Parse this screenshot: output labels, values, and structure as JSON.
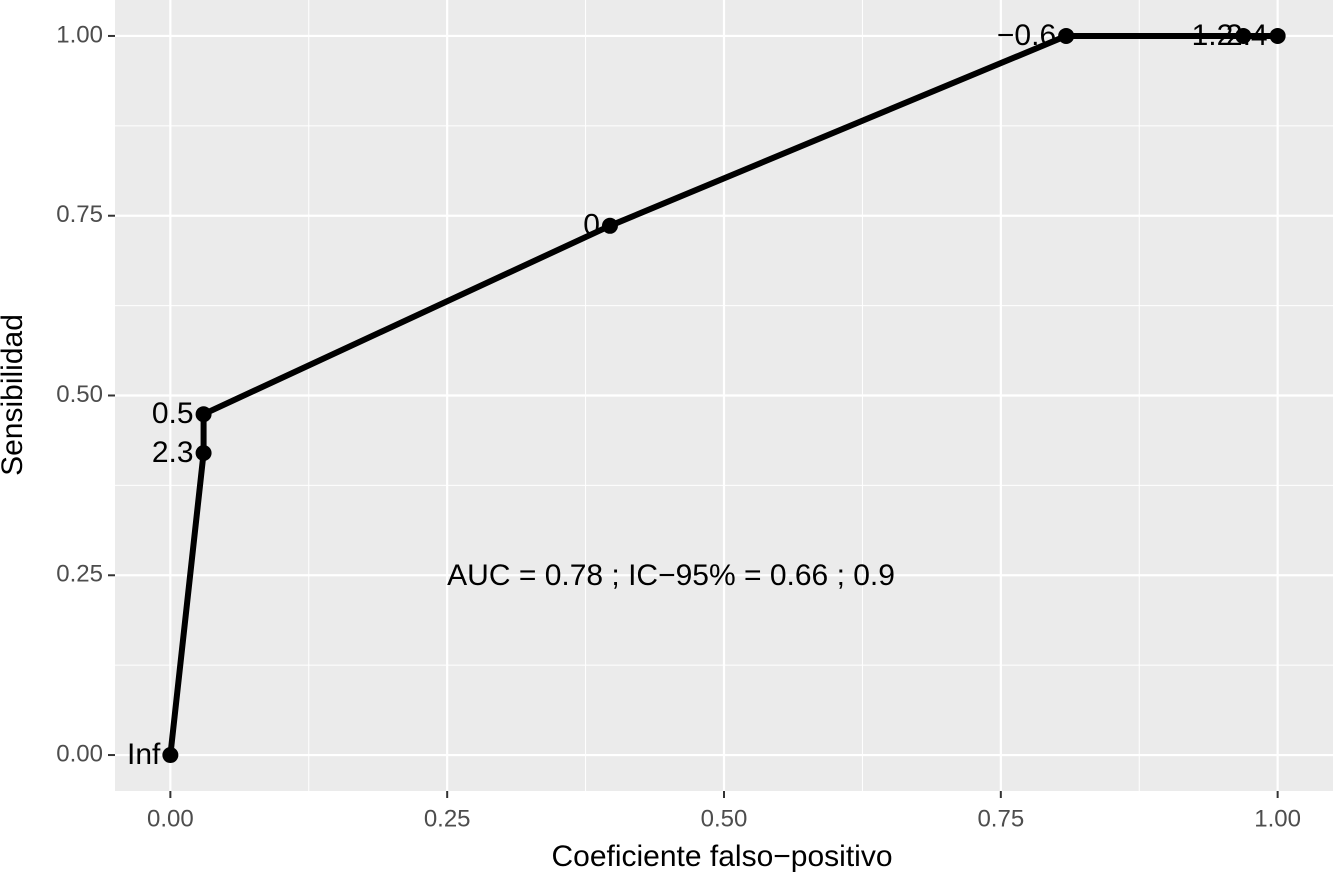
{
  "chart_data": {
    "type": "line",
    "x_label": "Coeficiente falso−positivo",
    "y_label": "Sensibilidad",
    "x": [
      0,
      0.03,
      0.03,
      0.397,
      0.809,
      0.969,
      1.0
    ],
    "series": [
      {
        "color": "#000000",
        "values": [
          0,
          0.42,
          0.474,
          0.736,
          1.0,
          1.0,
          1.0
        ],
        "point_labels": [
          "Inf",
          "2.3",
          "0.5",
          "0",
          "−0.6",
          "1.2",
          "2.4"
        ]
      }
    ],
    "annotation": {
      "text": "AUC =  0.78 ;  IC−95% =  0.66 ; 0.9",
      "x": 0.25,
      "y": 0.25
    },
    "xlim": [
      -0.05,
      1.05
    ],
    "ylim": [
      -0.05,
      1.05
    ],
    "xticks": [
      {
        "value": 0,
        "label": "0.00"
      },
      {
        "value": 0.25,
        "label": "0.25"
      },
      {
        "value": 0.5,
        "label": "0.50"
      },
      {
        "value": 0.75,
        "label": "0.75"
      },
      {
        "value": 1,
        "label": "1.00"
      }
    ],
    "yticks": [
      {
        "value": 0,
        "label": "0.00"
      },
      {
        "value": 0.25,
        "label": "0.25"
      },
      {
        "value": 0.5,
        "label": "0.50"
      },
      {
        "value": 0.75,
        "label": "0.75"
      },
      {
        "value": 1,
        "label": "1.00"
      }
    ],
    "grid": true,
    "minor_grid": true
  }
}
